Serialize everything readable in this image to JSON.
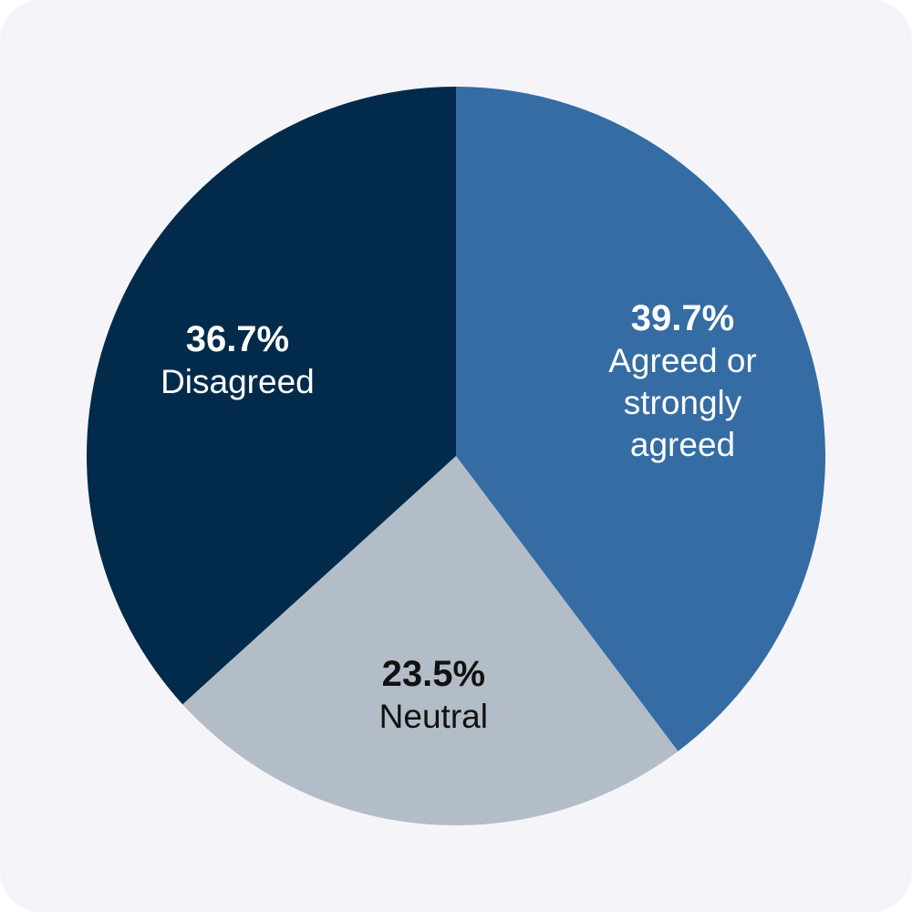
{
  "colors": {
    "background": "#f5f5f9"
  },
  "chart_data": {
    "type": "pie",
    "title": "",
    "start_angle_deg": 0,
    "direction": "clockwise",
    "slices": [
      {
        "label": "Agreed or strongly agreed",
        "label_lines": [
          "Agreed or",
          "strongly",
          "agreed"
        ],
        "value": 39.7,
        "display": "39.7%",
        "color": "#346ca3",
        "text_color": "#ffffff"
      },
      {
        "label": "Neutral",
        "label_lines": [
          "Neutral"
        ],
        "value": 23.5,
        "display": "23.5%",
        "color": "#b3bdc8",
        "text_color": "#111111"
      },
      {
        "label": "Disagreed",
        "label_lines": [
          "Disagreed"
        ],
        "value": 36.7,
        "display": "36.7%",
        "color": "#022b4b",
        "text_color": "#ffffff"
      }
    ]
  }
}
